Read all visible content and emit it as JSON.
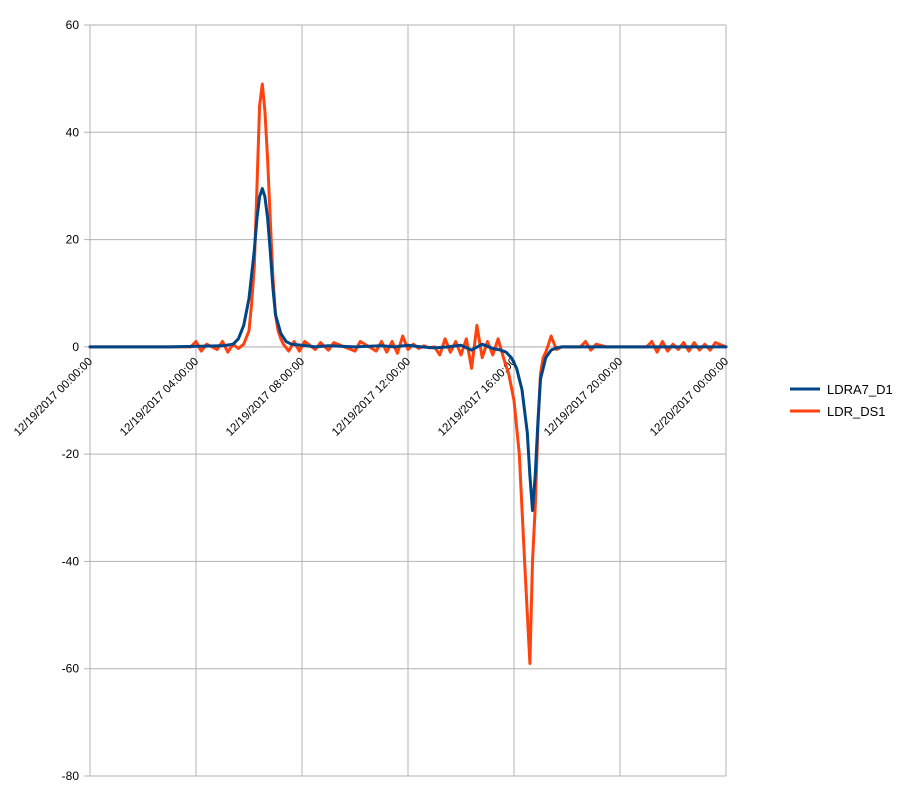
{
  "chart_data": {
    "type": "line",
    "title": "",
    "xlabel": "",
    "ylabel": "",
    "ylim": [
      -80,
      60
    ],
    "yticks": [
      "60",
      "40",
      "20",
      "0",
      "-20",
      "-40",
      "-60",
      "-80"
    ],
    "xlim": [
      "12/19/2017 00:00:00",
      "12/20/2017 00:00:00"
    ],
    "xticks": [
      "12/19/2017 00:00:00",
      "12/19/2017 04:00:00",
      "12/19/2017 08:00:00",
      "12/19/2017 12:00:00",
      "12/19/2017 16:00:00",
      "12/19/2017 20:00:00",
      "12/20/2017 00:00:00"
    ],
    "grid": true,
    "legend_position": "right",
    "series": [
      {
        "name": "LDRA7_D1",
        "color": "#004586",
        "x": [
          "12/19/2017 00:00:00",
          "12/19/2017 03:00:00",
          "12/19/2017 05:00:00",
          "12/19/2017 05:24:00",
          "12/19/2017 05:36:00",
          "12/19/2017 05:48:00",
          "12/19/2017 06:00:00",
          "12/19/2017 06:12:00",
          "12/19/2017 06:18:00",
          "12/19/2017 06:24:00",
          "12/19/2017 06:30:00",
          "12/19/2017 06:36:00",
          "12/19/2017 06:42:00",
          "12/19/2017 06:48:00",
          "12/19/2017 06:54:00",
          "12/19/2017 07:00:00",
          "12/19/2017 07:12:00",
          "12/19/2017 07:24:00",
          "12/19/2017 07:36:00",
          "12/19/2017 08:00:00",
          "12/19/2017 08:30:00",
          "12/19/2017 09:00:00",
          "12/19/2017 10:00:00",
          "12/19/2017 11:00:00",
          "12/19/2017 11:30:00",
          "12/19/2017 12:00:00",
          "12/19/2017 12:30:00",
          "12/19/2017 13:00:00",
          "12/19/2017 13:30:00",
          "12/19/2017 14:00:00",
          "12/19/2017 14:24:00",
          "12/19/2017 14:48:00",
          "12/19/2017 15:12:00",
          "12/19/2017 15:30:00",
          "12/19/2017 15:42:00",
          "12/19/2017 15:54:00",
          "12/19/2017 16:06:00",
          "12/19/2017 16:18:00",
          "12/19/2017 16:30:00",
          "12/19/2017 16:36:00",
          "12/19/2017 16:42:00",
          "12/19/2017 16:48:00",
          "12/19/2017 16:54:00",
          "12/19/2017 17:00:00",
          "12/19/2017 17:12:00",
          "12/19/2017 17:24:00",
          "12/19/2017 17:36:00",
          "12/19/2017 17:48:00",
          "12/19/2017 18:00:00",
          "12/19/2017 18:30:00",
          "12/19/2017 20:00:00",
          "12/19/2017 22:00:00",
          "12/20/2017 00:00:00"
        ],
        "y": [
          0,
          0,
          0.2,
          0.5,
          1.5,
          4,
          9,
          18,
          24,
          28,
          29.5,
          28,
          24,
          18,
          11,
          6,
          2.5,
          1,
          0.5,
          0.3,
          0,
          0.2,
          0,
          0.2,
          0,
          0.3,
          0,
          -0.2,
          0,
          0.3,
          -0.6,
          0.5,
          -0.3,
          -0.6,
          -1,
          -2,
          -4,
          -8,
          -16,
          -24,
          -30.5,
          -24,
          -14,
          -6,
          -2,
          -0.6,
          -0.2,
          0,
          0,
          0,
          0,
          0,
          0
        ]
      },
      {
        "name": "LDR_DS1",
        "color": "#ff420e",
        "x": [
          "12/19/2017 00:00:00",
          "12/19/2017 03:48:00",
          "12/19/2017 04:00:00",
          "12/19/2017 04:12:00",
          "12/19/2017 04:24:00",
          "12/19/2017 04:48:00",
          "12/19/2017 05:00:00",
          "12/19/2017 05:12:00",
          "12/19/2017 05:24:00",
          "12/19/2017 05:36:00",
          "12/19/2017 05:48:00",
          "12/19/2017 06:00:00",
          "12/19/2017 06:06:00",
          "12/19/2017 06:12:00",
          "12/19/2017 06:18:00",
          "12/19/2017 06:24:00",
          "12/19/2017 06:30:00",
          "12/19/2017 06:36:00",
          "12/19/2017 06:42:00",
          "12/19/2017 06:48:00",
          "12/19/2017 06:54:00",
          "12/19/2017 07:00:00",
          "12/19/2017 07:06:00",
          "12/19/2017 07:12:00",
          "12/19/2017 07:18:00",
          "12/19/2017 07:30:00",
          "12/19/2017 07:42:00",
          "12/19/2017 07:54:00",
          "12/19/2017 08:06:00",
          "12/19/2017 08:30:00",
          "12/19/2017 08:42:00",
          "12/19/2017 09:00:00",
          "12/19/2017 09:12:00",
          "12/19/2017 10:00:00",
          "12/19/2017 10:12:00",
          "12/19/2017 10:48:00",
          "12/19/2017 11:00:00",
          "12/19/2017 11:12:00",
          "12/19/2017 11:24:00",
          "12/19/2017 11:36:00",
          "12/19/2017 11:48:00",
          "12/19/2017 12:00:00",
          "12/19/2017 12:12:00",
          "12/19/2017 12:24:00",
          "12/19/2017 12:36:00",
          "12/19/2017 12:48:00",
          "12/19/2017 13:00:00",
          "12/19/2017 13:12:00",
          "12/19/2017 13:24:00",
          "12/19/2017 13:36:00",
          "12/19/2017 13:48:00",
          "12/19/2017 14:00:00",
          "12/19/2017 14:12:00",
          "12/19/2017 14:24:00",
          "12/19/2017 14:36:00",
          "12/19/2017 14:48:00",
          "12/19/2017 15:00:00",
          "12/19/2017 15:12:00",
          "12/19/2017 15:24:00",
          "12/19/2017 15:36:00",
          "12/19/2017 15:48:00",
          "12/19/2017 16:00:00",
          "12/19/2017 16:12:00",
          "12/19/2017 16:24:00",
          "12/19/2017 16:36:00",
          "12/19/2017 16:42:00",
          "12/19/2017 16:48:00",
          "12/19/2017 16:54:00",
          "12/19/2017 17:00:00",
          "12/19/2017 17:06:00",
          "12/19/2017 17:12:00",
          "12/19/2017 17:18:00",
          "12/19/2017 17:24:00",
          "12/19/2017 17:36:00",
          "12/19/2017 17:48:00",
          "12/19/2017 18:00:00",
          "12/19/2017 18:30:00",
          "12/19/2017 18:42:00",
          "12/19/2017 18:54:00",
          "12/19/2017 19:06:00",
          "12/19/2017 19:30:00",
          "12/19/2017 21:00:00",
          "12/19/2017 21:12:00",
          "12/19/2017 21:24:00",
          "12/19/2017 21:36:00",
          "12/19/2017 21:48:00",
          "12/19/2017 22:00:00",
          "12/19/2017 22:12:00",
          "12/19/2017 22:24:00",
          "12/19/2017 22:36:00",
          "12/19/2017 22:48:00",
          "12/19/2017 23:00:00",
          "12/19/2017 23:12:00",
          "12/19/2017 23:24:00",
          "12/19/2017 23:36:00",
          "12/20/2017 00:00:00"
        ],
        "y": [
          0,
          0,
          1,
          -0.8,
          0.5,
          -0.5,
          1,
          -1,
          0.5,
          -0.3,
          0.5,
          3,
          8,
          15,
          30,
          45,
          49,
          44,
          35,
          24,
          13,
          6,
          3,
          1.5,
          0.5,
          -0.8,
          1,
          -0.8,
          1,
          -0.5,
          0.8,
          -0.6,
          0.8,
          -0.8,
          1,
          -0.8,
          1,
          -1,
          1,
          -1.2,
          2,
          -0.5,
          0.5,
          -0.3,
          0.2,
          -0.2,
          0,
          -1.5,
          1.5,
          -1,
          1,
          -1.5,
          1.5,
          -4,
          4,
          -2,
          1,
          -1.5,
          1.5,
          -2,
          -5,
          -10,
          -20,
          -40,
          -59,
          -40,
          -30,
          -15,
          -5,
          -2,
          -1,
          0.5,
          2,
          -0.5,
          0,
          0,
          0,
          1,
          -0.6,
          0.5,
          0,
          0,
          1,
          -1,
          1,
          -0.8,
          0.5,
          -0.5,
          0.8,
          -0.8,
          0.8,
          -0.6,
          0.5,
          -0.6,
          0.8,
          0
        ]
      }
    ]
  }
}
